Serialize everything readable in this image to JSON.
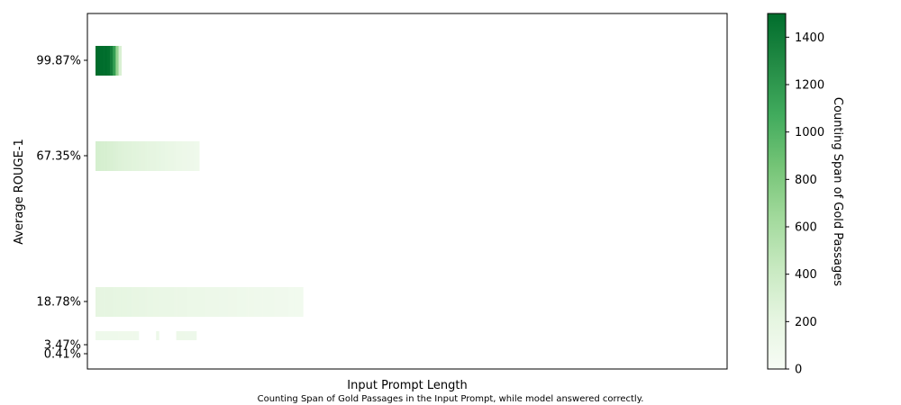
{
  "chart_data": {
    "type": "heatmap",
    "xlabel": "Input Prompt Length",
    "ylabel": "Average ROUGE-1",
    "caption": "Counting Span of Gold Passages in the Input Prompt, while model answered correctly.",
    "colorbar": {
      "label": "Counting Span of Gold Passages",
      "min": 0,
      "max": 1500,
      "ticks": [
        0,
        200,
        400,
        600,
        800,
        1000,
        1200,
        1400
      ],
      "colors": [
        "#f7fcf5",
        "#e5f5e0",
        "#c7e9c0",
        "#a1d99b",
        "#74c476",
        "#41ab5d",
        "#238b45",
        "#006d2c"
      ]
    },
    "y_ticks": [
      "99.87%",
      "67.35%",
      "18.78%",
      "3.47%",
      "0.41%"
    ],
    "rows": [
      {
        "y": "99.87%",
        "cells": [
          1500,
          1500,
          1500,
          1500,
          1480,
          1380,
          1150,
          700,
          300
        ]
      },
      {
        "y": "67.35%",
        "cells": [
          330,
          330,
          320,
          320,
          310,
          300,
          290,
          280,
          270,
          260,
          255,
          250,
          245,
          240,
          235,
          230,
          225,
          220,
          215,
          205,
          200,
          195,
          185,
          175,
          165,
          160,
          150,
          140,
          135,
          130,
          125,
          120,
          115,
          110,
          105,
          100
        ]
      },
      {
        "y": "18.78%",
        "cells": [
          205,
          205,
          205,
          205,
          205,
          200,
          195,
          195,
          190,
          190,
          190,
          185,
          185,
          180,
          180,
          175,
          175,
          170,
          165,
          165,
          160,
          160,
          155,
          155,
          150,
          150,
          150,
          145,
          145,
          140,
          140,
          140,
          135,
          135,
          130,
          130,
          130,
          130,
          125,
          125,
          120,
          120,
          120,
          115,
          115,
          115,
          110,
          110,
          110,
          105,
          105,
          105,
          100,
          100,
          100,
          95,
          95,
          95,
          90,
          90,
          90,
          90,
          85,
          85,
          80,
          80,
          80,
          75,
          75,
          75,
          75,
          70
        ]
      },
      {
        "y": "3.47%",
        "cells": [
          105,
          105,
          105,
          105,
          105,
          105,
          105,
          105,
          100,
          100,
          100,
          100,
          100,
          100,
          95,
          null,
          null,
          null,
          null,
          null,
          null,
          120,
          null,
          null,
          null,
          null,
          null,
          null,
          120,
          120,
          120,
          115,
          115,
          115,
          115
        ]
      },
      {
        "y": "0.41%",
        "cells": []
      }
    ]
  }
}
